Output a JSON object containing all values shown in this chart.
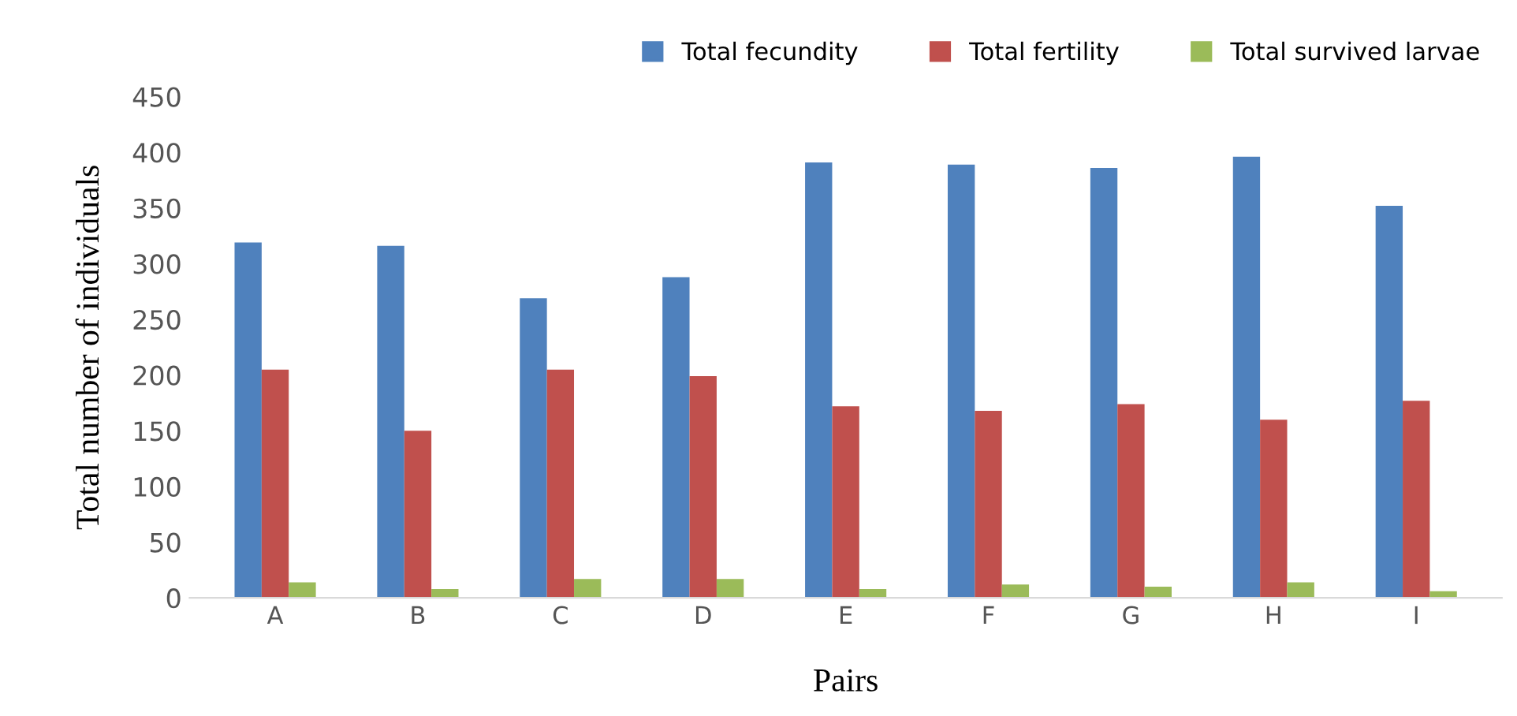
{
  "chart_data": {
    "type": "bar",
    "xlabel": "Pairs",
    "ylabel": "Total number of individuals",
    "categories": [
      "A",
      "B",
      "C",
      "D",
      "E",
      "F",
      "G",
      "H",
      "I"
    ],
    "series": [
      {
        "name": "Total fecundity",
        "color": "#4f81bd",
        "values": [
          319,
          316,
          269,
          288,
          391,
          389,
          386,
          396,
          352
        ]
      },
      {
        "name": "Total fertility",
        "color": "#c0504d",
        "values": [
          205,
          150,
          205,
          199,
          172,
          168,
          174,
          160,
          177
        ]
      },
      {
        "name": "Total survived larvae",
        "color": "#9bbb59",
        "values": [
          14,
          8,
          17,
          17,
          8,
          12,
          10,
          14,
          6
        ]
      }
    ],
    "ylim": [
      0,
      450
    ],
    "yticks": [
      0,
      50,
      100,
      150,
      200,
      250,
      300,
      350,
      400,
      450
    ],
    "grid": false,
    "legend": "top right"
  }
}
